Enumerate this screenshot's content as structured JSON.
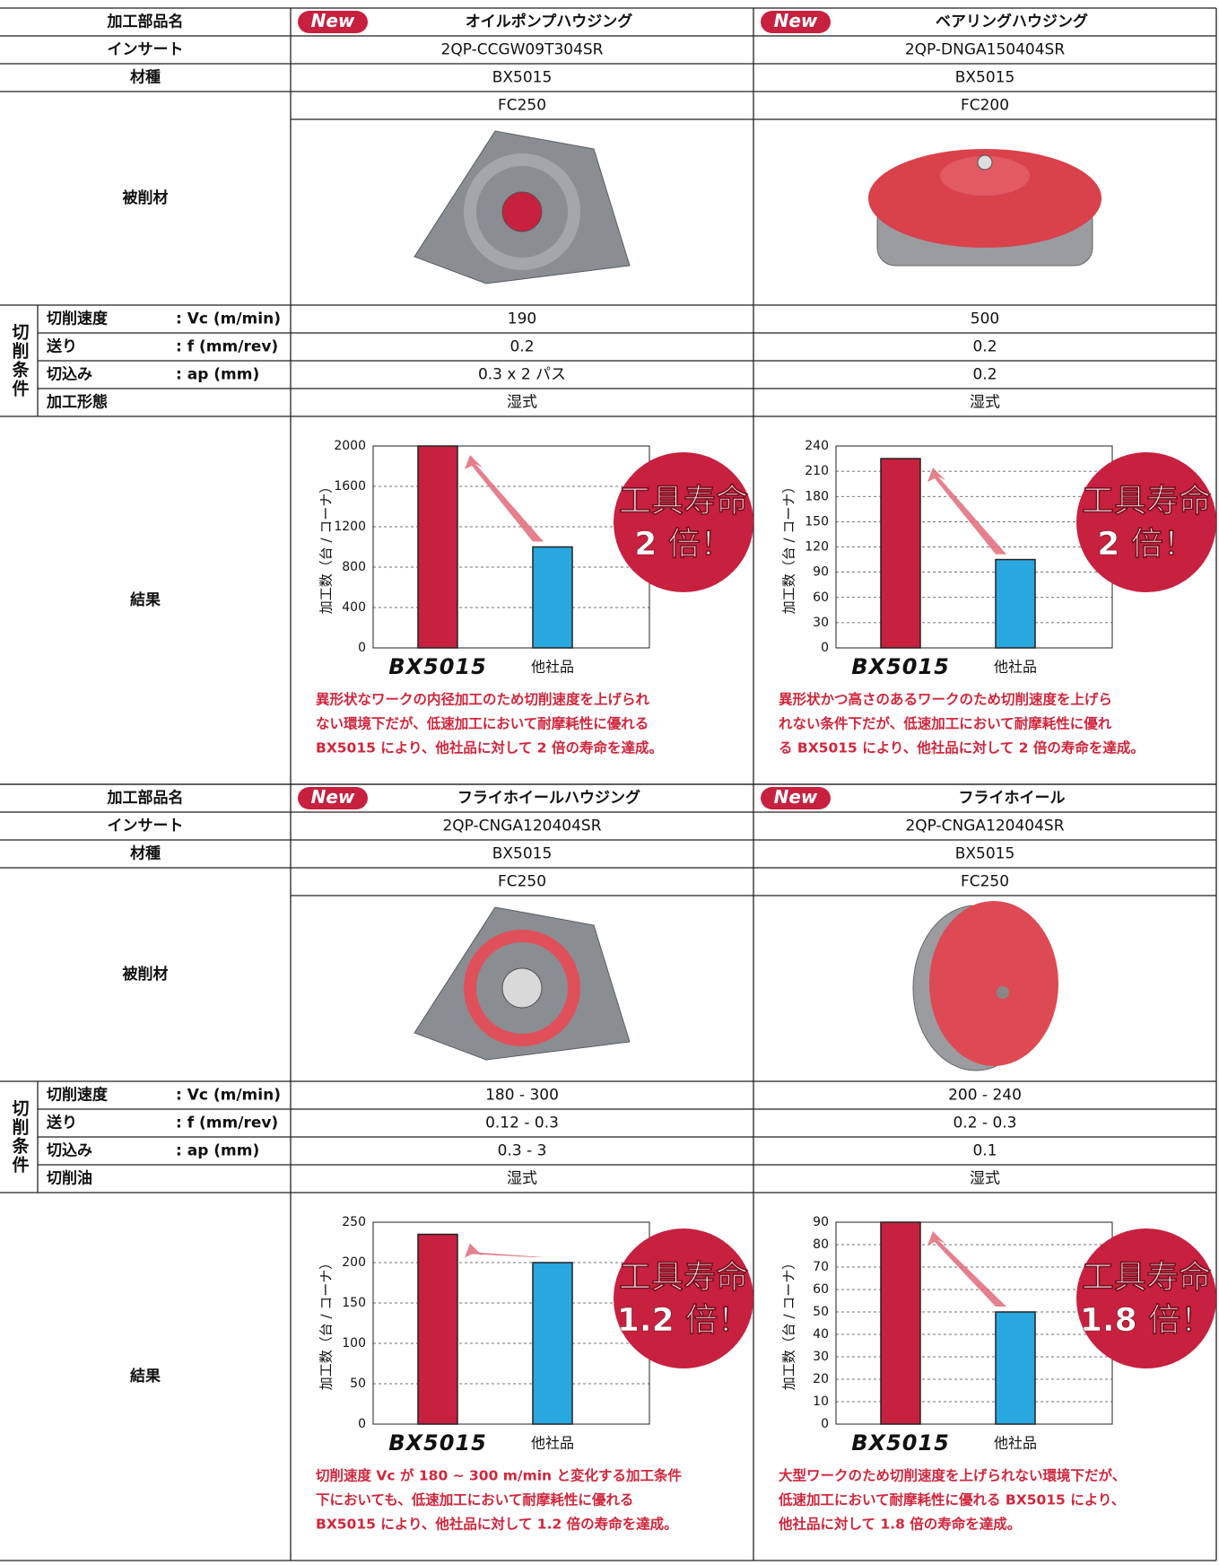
{
  "blocks": [
    {
      "labels": {
        "part": "加工部品名",
        "insert": "インサート",
        "grade": "材種",
        "material": "被削材",
        "conditions_group": "切削条件",
        "conditions": [
          {
            "name": "切削速度",
            "param": ": Vc (m/min)"
          },
          {
            "name": "送り",
            "param": ": f (mm/rev)"
          },
          {
            "name": "切込み",
            "param": ": ap (mm)"
          },
          {
            "name": "加工形態"
          }
        ],
        "result": "結果"
      },
      "cases": [
        {
          "badge_new": "New",
          "name": "オイルポンプハウジング",
          "insert": "2QP-CCGW09T304SR",
          "grade": "BX5015",
          "material": "FC250",
          "conditions": [
            "190",
            "0.2",
            "0.3 x 2 パス",
            "湿式"
          ],
          "chart": {
            "type": "bar",
            "ylabel": "加工数（台 / コーナ）",
            "categories": [
              "BX5015",
              "他社品"
            ],
            "values": [
              2000,
              1000
            ],
            "colors": [
              "#c8203f",
              "#29a8e0"
            ],
            "ylim": [
              0,
              2000
            ],
            "yticks": [
              0,
              400,
              800,
              1200,
              1600,
              2000
            ]
          },
          "badge": [
            "工具寿命",
            "2 倍！"
          ],
          "note": [
            "異形状なワークの内径加工のため切削速度を上げられ",
            "ない環境下だが、低速加工において耐摩耗性に優れる",
            "BX5015 により、他社品に対して 2 倍の寿命を達成。"
          ]
        },
        {
          "badge_new": "New",
          "name": "ベアリングハウジング",
          "insert": "2QP-DNGA150404SR",
          "grade": "BX5015",
          "material": "FC200",
          "conditions": [
            "500",
            "0.2",
            "0.2",
            "湿式"
          ],
          "chart": {
            "type": "bar",
            "ylabel": "加工数（台 / コーナ）",
            "categories": [
              "BX5015",
              "他社品"
            ],
            "values": [
              225,
              105
            ],
            "colors": [
              "#c8203f",
              "#29a8e0"
            ],
            "ylim": [
              0,
              240
            ],
            "yticks": [
              0,
              30,
              60,
              90,
              120,
              150,
              180,
              210,
              240
            ]
          },
          "badge": [
            "工具寿命",
            "2 倍！"
          ],
          "note": [
            "異形状かつ高さのあるワークのため切削速度を上げら",
            "れない条件下だが、低速加工において耐摩耗性に優れ",
            "る BX5015 により、他社品に対して 2 倍の寿命を達成。"
          ]
        }
      ]
    },
    {
      "labels": {
        "part": "加工部品名",
        "insert": "インサート",
        "grade": "材種",
        "material": "被削材",
        "conditions_group": "切削条件",
        "conditions": [
          {
            "name": "切削速度",
            "param": ": Vc (m/min)"
          },
          {
            "name": "送り",
            "param": ": f (mm/rev)"
          },
          {
            "name": "切込み",
            "param": ": ap (mm)"
          },
          {
            "name": "切削油"
          }
        ],
        "result": "結果"
      },
      "cases": [
        {
          "badge_new": "New",
          "name": "フライホイールハウジング",
          "insert": "2QP-CNGA120404SR",
          "grade": "BX5015",
          "material": "FC250",
          "conditions": [
            "180 - 300",
            "0.12 - 0.3",
            "0.3 - 3",
            "湿式"
          ],
          "chart": {
            "type": "bar",
            "ylabel": "加工数（台 / コーナ）",
            "categories": [
              "BX5015",
              "他社品"
            ],
            "values": [
              235,
              200
            ],
            "colors": [
              "#c8203f",
              "#29a8e0"
            ],
            "ylim": [
              0,
              250
            ],
            "yticks": [
              0,
              50,
              100,
              150,
              200,
              250
            ]
          },
          "badge": [
            "工具寿命",
            "1.2 倍！"
          ],
          "note": [
            "切削速度 Vc が 180 ~ 300 m/min と変化する加工条件",
            "下においても、低速加工において耐摩耗性に優れる",
            "BX5015 により、他社品に対して 1.2 倍の寿命を達成。"
          ]
        },
        {
          "badge_new": "New",
          "name": "フライホイール",
          "insert": "2QP-CNGA120404SR",
          "grade": "BX5015",
          "material": "FC250",
          "conditions": [
            "200 - 240",
            "0.2 - 0.3",
            "0.1",
            "湿式"
          ],
          "chart": {
            "type": "bar",
            "ylabel": "加工数（台 / コーナ）",
            "categories": [
              "BX5015",
              "他社品"
            ],
            "values": [
              90,
              50
            ],
            "colors": [
              "#c8203f",
              "#29a8e0"
            ],
            "ylim": [
              0,
              90
            ],
            "yticks": [
              0,
              10,
              20,
              30,
              40,
              50,
              60,
              70,
              80,
              90
            ]
          },
          "badge": [
            "工具寿命",
            "1.8 倍！"
          ],
          "note": [
            "大型ワークのため切削速度を上げられない環境下だが、",
            "低速加工において耐摩耗性に優れる BX5015 により、",
            "他社品に対して 1.8 倍の寿命を達成。"
          ]
        }
      ]
    }
  ]
}
